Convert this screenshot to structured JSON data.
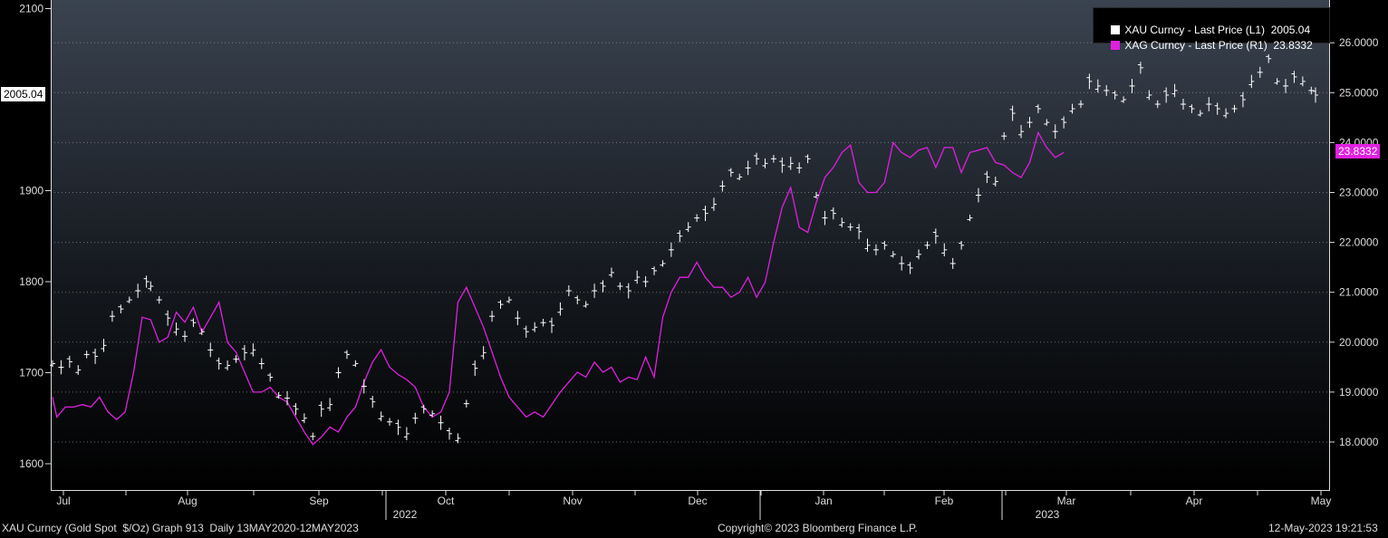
{
  "chart_data": {
    "type": "line",
    "title": "",
    "months": [
      "Jul",
      "Aug",
      "Sep",
      "Oct",
      "Nov",
      "Dec",
      "Jan",
      "Feb",
      "Mar",
      "Apr",
      "May"
    ],
    "years": [
      "2022",
      "2023"
    ],
    "y_left": {
      "ticks": [
        "1600",
        "1700",
        "1800",
        "1900",
        "2100"
      ],
      "range": [
        1590,
        2110
      ]
    },
    "y_right": {
      "ticks": [
        "18.0000",
        "19.0000",
        "20.0000",
        "21.0000",
        "22.0000",
        "23.0000",
        "24.0000",
        "25.0000",
        "26.0000"
      ],
      "range": [
        17.2,
        27.0
      ]
    },
    "series": [
      {
        "name": "XAU Curncy - Last Price (L1)",
        "legend_value": "2005.04",
        "last_label": "2005.04",
        "color": "#ffffff",
        "style": "bar-ohlc",
        "axis": "left",
        "points": [
          [
            0,
            1710
          ],
          [
            2,
            1706
          ],
          [
            4,
            1712
          ],
          [
            6,
            1703
          ],
          [
            8,
            1720
          ],
          [
            10,
            1718
          ],
          [
            12,
            1730
          ],
          [
            14,
            1762
          ],
          [
            16,
            1770
          ],
          [
            18,
            1780
          ],
          [
            20,
            1790
          ],
          [
            22,
            1800
          ],
          [
            23,
            1795
          ],
          [
            25,
            1780
          ],
          [
            27,
            1760
          ],
          [
            29,
            1748
          ],
          [
            31,
            1740
          ],
          [
            33,
            1755
          ],
          [
            35,
            1745
          ],
          [
            37,
            1725
          ],
          [
            39,
            1710
          ],
          [
            41,
            1708
          ],
          [
            43,
            1715
          ],
          [
            45,
            1722
          ],
          [
            47,
            1725
          ],
          [
            49,
            1710
          ],
          [
            51,
            1695
          ],
          [
            53,
            1675
          ],
          [
            55,
            1672
          ],
          [
            57,
            1660
          ],
          [
            59,
            1650
          ],
          [
            61,
            1630
          ],
          [
            63,
            1660
          ],
          [
            65,
            1665
          ],
          [
            67,
            1700
          ],
          [
            69,
            1720
          ],
          [
            71,
            1710
          ],
          [
            73,
            1685
          ],
          [
            75,
            1668
          ],
          [
            77,
            1652
          ],
          [
            79,
            1646
          ],
          [
            81,
            1640
          ],
          [
            83,
            1633
          ],
          [
            85,
            1650
          ],
          [
            87,
            1660
          ],
          [
            89,
            1655
          ],
          [
            91,
            1645
          ],
          [
            93,
            1633
          ],
          [
            95,
            1628
          ],
          [
            97,
            1666
          ],
          [
            99,
            1705
          ],
          [
            101,
            1722
          ],
          [
            103,
            1762
          ],
          [
            105,
            1775
          ],
          [
            107,
            1780
          ],
          [
            109,
            1760
          ],
          [
            111,
            1745
          ],
          [
            113,
            1750
          ],
          [
            115,
            1755
          ],
          [
            117,
            1752
          ],
          [
            119,
            1770
          ],
          [
            121,
            1790
          ],
          [
            123,
            1780
          ],
          [
            125,
            1775
          ],
          [
            127,
            1790
          ],
          [
            129,
            1795
          ],
          [
            131,
            1810
          ],
          [
            133,
            1795
          ],
          [
            135,
            1790
          ],
          [
            137,
            1805
          ],
          [
            139,
            1800
          ],
          [
            141,
            1812
          ],
          [
            143,
            1820
          ],
          [
            145,
            1835
          ],
          [
            147,
            1850
          ],
          [
            149,
            1860
          ],
          [
            151,
            1870
          ],
          [
            153,
            1875
          ],
          [
            155,
            1885
          ],
          [
            157,
            1905
          ],
          [
            159,
            1920
          ],
          [
            161,
            1915
          ],
          [
            163,
            1925
          ],
          [
            165,
            1935
          ],
          [
            167,
            1930
          ],
          [
            169,
            1935
          ],
          [
            171,
            1928
          ],
          [
            173,
            1930
          ],
          [
            175,
            1925
          ],
          [
            177,
            1935
          ],
          [
            179,
            1895
          ],
          [
            181,
            1870
          ],
          [
            183,
            1875
          ],
          [
            185,
            1865
          ],
          [
            187,
            1860
          ],
          [
            189,
            1855
          ],
          [
            191,
            1840
          ],
          [
            193,
            1835
          ],
          [
            195,
            1840
          ],
          [
            197,
            1830
          ],
          [
            199,
            1820
          ],
          [
            201,
            1815
          ],
          [
            203,
            1830
          ],
          [
            205,
            1840
          ],
          [
            207,
            1850
          ],
          [
            209,
            1835
          ],
          [
            211,
            1820
          ],
          [
            213,
            1840
          ],
          [
            215,
            1870
          ],
          [
            217,
            1895
          ],
          [
            219,
            1915
          ],
          [
            221,
            1910
          ],
          [
            223,
            1960
          ],
          [
            225,
            1985
          ],
          [
            227,
            1965
          ],
          [
            229,
            1975
          ],
          [
            231,
            1990
          ],
          [
            233,
            1975
          ],
          [
            235,
            1965
          ],
          [
            237,
            1975
          ],
          [
            239,
            1990
          ],
          [
            241,
            1995
          ],
          [
            243,
            2020
          ],
          [
            245,
            2015
          ],
          [
            247,
            2010
          ],
          [
            249,
            2005
          ],
          [
            251,
            2000
          ],
          [
            253,
            2015
          ],
          [
            255,
            2035
          ],
          [
            257,
            2005
          ],
          [
            259,
            1995
          ],
          [
            261,
            2005
          ],
          [
            263,
            2010
          ],
          [
            265,
            1995
          ],
          [
            267,
            1990
          ],
          [
            269,
            1985
          ],
          [
            271,
            1995
          ],
          [
            273,
            1990
          ],
          [
            275,
            1985
          ],
          [
            277,
            1990
          ],
          [
            279,
            2000
          ],
          [
            281,
            2020
          ],
          [
            283,
            2030
          ],
          [
            285,
            2045
          ],
          [
            287,
            2020
          ],
          [
            289,
            2015
          ],
          [
            291,
            2025
          ],
          [
            293,
            2020
          ],
          [
            295,
            2010
          ],
          [
            296,
            2005
          ]
        ]
      },
      {
        "name": "XAG Curncy - Last Price (R1)",
        "legend_value": "23.8332",
        "last_label": "23.8332",
        "color": "#e020e0",
        "style": "line",
        "axis": "right",
        "points": [
          [
            0,
            18.9
          ],
          [
            1,
            18.5
          ],
          [
            3,
            18.7
          ],
          [
            5,
            18.7
          ],
          [
            7,
            18.75
          ],
          [
            9,
            18.7
          ],
          [
            11,
            18.9
          ],
          [
            13,
            18.6
          ],
          [
            15,
            18.45
          ],
          [
            17,
            18.6
          ],
          [
            19,
            19.4
          ],
          [
            21,
            20.5
          ],
          [
            23,
            20.45
          ],
          [
            25,
            20.0
          ],
          [
            27,
            20.1
          ],
          [
            29,
            20.6
          ],
          [
            31,
            20.4
          ],
          [
            33,
            20.7
          ],
          [
            35,
            20.2
          ],
          [
            37,
            20.5
          ],
          [
            39,
            20.8
          ],
          [
            41,
            20.0
          ],
          [
            43,
            19.8
          ],
          [
            45,
            19.4
          ],
          [
            47,
            19.0
          ],
          [
            49,
            19.0
          ],
          [
            51,
            19.1
          ],
          [
            53,
            18.9
          ],
          [
            55,
            18.8
          ],
          [
            57,
            18.5
          ],
          [
            59,
            18.2
          ],
          [
            61,
            17.95
          ],
          [
            63,
            18.1
          ],
          [
            65,
            18.3
          ],
          [
            67,
            18.2
          ],
          [
            69,
            18.5
          ],
          [
            71,
            18.7
          ],
          [
            73,
            19.2
          ],
          [
            75,
            19.6
          ],
          [
            77,
            19.85
          ],
          [
            79,
            19.5
          ],
          [
            81,
            19.35
          ],
          [
            83,
            19.25
          ],
          [
            85,
            19.1
          ],
          [
            87,
            18.7
          ],
          [
            89,
            18.5
          ],
          [
            91,
            18.6
          ],
          [
            93,
            19.0
          ],
          [
            95,
            20.8
          ],
          [
            97,
            21.1
          ],
          [
            99,
            20.7
          ],
          [
            101,
            20.3
          ],
          [
            103,
            19.8
          ],
          [
            105,
            19.3
          ],
          [
            107,
            18.9
          ],
          [
            109,
            18.7
          ],
          [
            111,
            18.5
          ],
          [
            113,
            18.6
          ],
          [
            115,
            18.5
          ],
          [
            117,
            18.75
          ],
          [
            119,
            19.0
          ],
          [
            121,
            19.2
          ],
          [
            123,
            19.4
          ],
          [
            125,
            19.3
          ],
          [
            127,
            19.6
          ],
          [
            129,
            19.4
          ],
          [
            131,
            19.5
          ],
          [
            133,
            19.2
          ],
          [
            135,
            19.3
          ],
          [
            137,
            19.25
          ],
          [
            139,
            19.7
          ],
          [
            141,
            19.3
          ],
          [
            143,
            20.5
          ],
          [
            145,
            21.0
          ],
          [
            147,
            21.3
          ],
          [
            149,
            21.3
          ],
          [
            151,
            21.6
          ],
          [
            153,
            21.3
          ],
          [
            155,
            21.1
          ],
          [
            157,
            21.1
          ],
          [
            159,
            20.9
          ],
          [
            161,
            21.0
          ],
          [
            163,
            21.3
          ],
          [
            165,
            20.9
          ],
          [
            167,
            21.2
          ],
          [
            169,
            22.0
          ],
          [
            171,
            22.7
          ],
          [
            173,
            23.1
          ],
          [
            175,
            22.3
          ],
          [
            177,
            22.2
          ],
          [
            179,
            22.8
          ],
          [
            181,
            23.3
          ],
          [
            183,
            23.5
          ],
          [
            185,
            23.8
          ],
          [
            187,
            23.95
          ],
          [
            189,
            23.2
          ],
          [
            191,
            23.0
          ],
          [
            193,
            23.0
          ],
          [
            195,
            23.2
          ],
          [
            197,
            24.0
          ],
          [
            199,
            23.8
          ],
          [
            201,
            23.7
          ],
          [
            203,
            23.85
          ],
          [
            205,
            23.9
          ],
          [
            207,
            23.5
          ],
          [
            209,
            23.9
          ],
          [
            211,
            23.9
          ],
          [
            213,
            23.4
          ],
          [
            215,
            23.8
          ],
          [
            217,
            23.85
          ],
          [
            219,
            23.9
          ],
          [
            221,
            23.6
          ],
          [
            223,
            23.55
          ],
          [
            225,
            23.4
          ],
          [
            227,
            23.3
          ],
          [
            229,
            23.6
          ],
          [
            231,
            24.2
          ],
          [
            233,
            23.9
          ],
          [
            235,
            23.7
          ],
          [
            237,
            23.8
          ]
        ]
      }
    ],
    "footer_left": "XAU Curncy (Gold Spot  $/Oz) Graph 913  Daily 13MAY2020-12MAY2023",
    "footer_center": "Copyright© 2023 Bloomberg Finance L.P.",
    "footer_right": "12-May-2023 19:21:53"
  }
}
